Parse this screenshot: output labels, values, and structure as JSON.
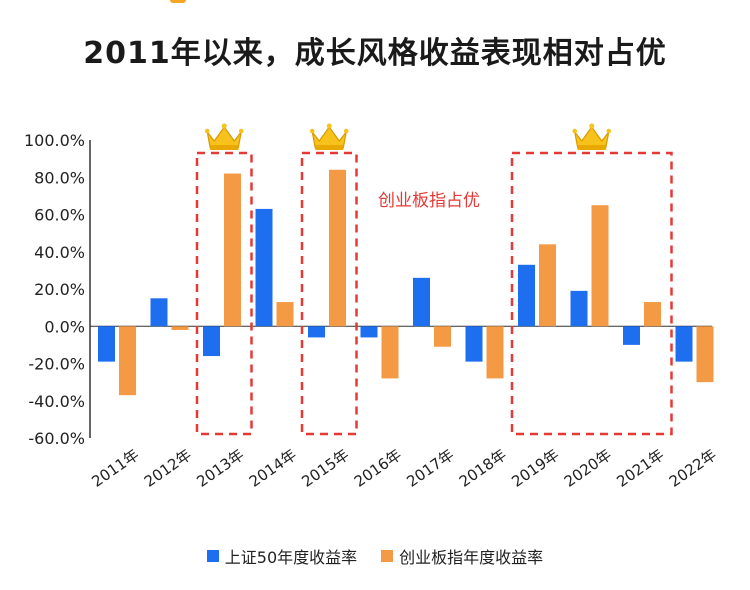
{
  "chart_data": {
    "type": "bar",
    "title": "2011年以来，成长风格收益表现相对占优",
    "categories": [
      "2011年",
      "2012年",
      "2013年",
      "2014年",
      "2015年",
      "2016年",
      "2017年",
      "2018年",
      "2019年",
      "2020年",
      "2021年",
      "2022年"
    ],
    "series": [
      {
        "name": "上证50年度收益率",
        "color": "#1e6ef0",
        "values": [
          -19,
          15,
          -16,
          63,
          -6,
          -6,
          26,
          -19,
          33,
          19,
          -10,
          -19
        ]
      },
      {
        "name": "创业板指年度收益率",
        "color": "#f59a44",
        "values": [
          -37,
          -2,
          82,
          13,
          84,
          -28,
          -11,
          -28,
          44,
          65,
          13,
          -30
        ]
      }
    ],
    "ylim": [
      -60,
      100
    ],
    "yticks": [
      "100.0%",
      "80.0%",
      "60.0%",
      "40.0%",
      "20.0%",
      "0.0%",
      "-20.0%",
      "-40.0%",
      "-60.0%"
    ],
    "yticks_values": [
      100,
      80,
      60,
      40,
      20,
      0,
      -20,
      -40,
      -60
    ],
    "annotation": "创业板指占优",
    "highlighted_groups": [
      [
        2,
        2
      ],
      [
        4,
        4
      ],
      [
        8,
        10
      ]
    ],
    "annotation_color": "#e53935",
    "crown_icon": "crown-icon"
  }
}
